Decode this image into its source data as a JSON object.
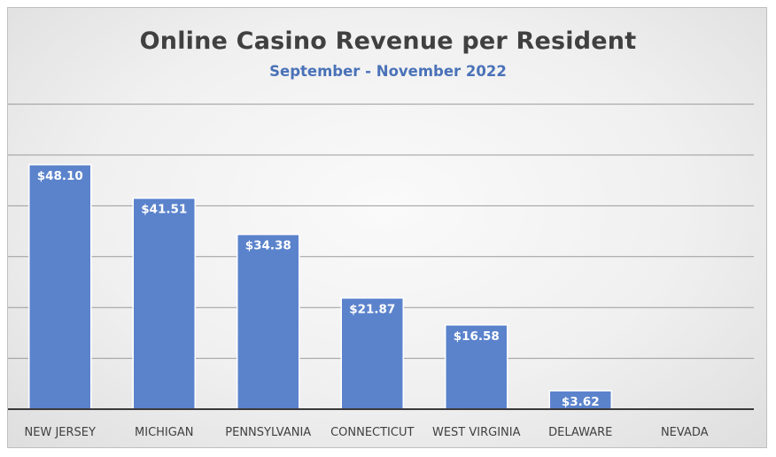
{
  "chart_data": {
    "type": "bar",
    "title": "Online Casino Revenue per Resident",
    "subtitle": "September - November 2022",
    "xlabel": "",
    "ylabel": "",
    "categories": [
      "NEW JERSEY",
      "MICHIGAN",
      "PENNSYLVANIA",
      "CONNECTICUT",
      "WEST VIRGINIA",
      "DELAWARE",
      "NEVADA"
    ],
    "values": [
      48.1,
      41.51,
      34.38,
      21.87,
      16.58,
      3.62,
      0
    ],
    "data_labels": [
      "$48.10",
      "$41.51",
      "$34.38",
      "$21.87",
      "$16.58",
      "$3.62",
      ""
    ],
    "ylim": [
      0,
      60
    ],
    "y_tick_step": 10,
    "y_tick_labels_visible": false,
    "grid": true,
    "legend": "none",
    "bar_color": "#5b83cc",
    "title_color": "#404040",
    "subtitle_color": "#4a72b8"
  }
}
